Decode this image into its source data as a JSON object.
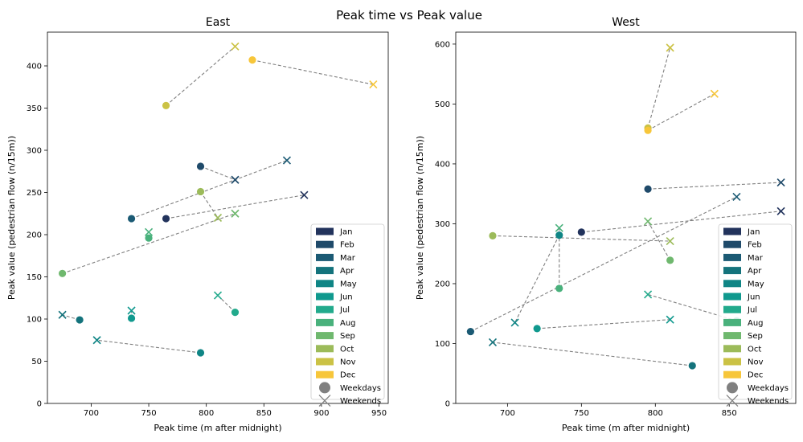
{
  "figure_title": "Peak time vs Peak value",
  "legend": {
    "months": [
      {
        "label": "Jan",
        "color": "#22335c"
      },
      {
        "label": "Feb",
        "color": "#1f4a6a"
      },
      {
        "label": "Mar",
        "color": "#1b5a74"
      },
      {
        "label": "Apr",
        "color": "#14737c"
      },
      {
        "label": "May",
        "color": "#0f8585"
      },
      {
        "label": "Jun",
        "color": "#10998e"
      },
      {
        "label": "Jul",
        "color": "#22aa8c"
      },
      {
        "label": "Aug",
        "color": "#49b17c"
      },
      {
        "label": "Sep",
        "color": "#6fb86e"
      },
      {
        "label": "Oct",
        "color": "#9cbb5a"
      },
      {
        "label": "Nov",
        "color": "#cbc245"
      },
      {
        "label": "Dec",
        "color": "#f7c63a"
      }
    ],
    "markers": [
      {
        "label": "Weekdays",
        "shape": "circle",
        "color": "#808080"
      },
      {
        "label": "Weekends",
        "shape": "x",
        "color": "#808080"
      }
    ]
  },
  "chart_data": [
    {
      "type": "scatter",
      "title": "East",
      "xlabel": "Peak time (m after midnight)",
      "ylabel": "Peak value (pedestrian flow (n/15m))",
      "xlim": [
        662,
        958
      ],
      "ylim": [
        0,
        440
      ],
      "xticks": [
        700,
        750,
        800,
        850,
        900,
        950
      ],
      "yticks": [
        0,
        50,
        100,
        150,
        200,
        250,
        300,
        350,
        400
      ],
      "legend_position": "lower-right",
      "points": [
        {
          "month": "Jan",
          "weekday": [
            765,
            219
          ],
          "weekend": [
            885,
            247
          ]
        },
        {
          "month": "Feb",
          "weekday": [
            795,
            281
          ],
          "weekend": [
            825,
            265
          ]
        },
        {
          "month": "Mar",
          "weekday": [
            735,
            219
          ],
          "weekend": [
            870,
            288
          ]
        },
        {
          "month": "Apr",
          "weekday": [
            690,
            99
          ],
          "weekend": [
            675,
            105
          ]
        },
        {
          "month": "May",
          "weekday": [
            795,
            60
          ],
          "weekend": [
            705,
            75
          ]
        },
        {
          "month": "Jun",
          "weekday": [
            735,
            101
          ],
          "weekend": [
            735,
            110
          ]
        },
        {
          "month": "Jul",
          "weekday": [
            825,
            108
          ],
          "weekend": [
            810,
            128
          ]
        },
        {
          "month": "Aug",
          "weekday": [
            750,
            196
          ],
          "weekend": [
            750,
            203
          ]
        },
        {
          "month": "Sep",
          "weekday": [
            675,
            154
          ],
          "weekend": [
            825,
            225
          ]
        },
        {
          "month": "Oct",
          "weekday": [
            795,
            251
          ],
          "weekend": [
            810,
            220
          ]
        },
        {
          "month": "Nov",
          "weekday": [
            765,
            353
          ],
          "weekend": [
            825,
            423
          ]
        },
        {
          "month": "Dec",
          "weekday": [
            840,
            407
          ],
          "weekend": [
            945,
            378
          ]
        }
      ]
    },
    {
      "type": "scatter",
      "title": "West",
      "xlabel": "Peak time (m after midnight)",
      "ylabel": "Peak value (pedestrian flow (n/15m))",
      "xlim": [
        665,
        895
      ],
      "ylim": [
        0,
        620
      ],
      "xticks": [
        700,
        750,
        800,
        850
      ],
      "yticks": [
        0,
        100,
        200,
        300,
        400,
        500,
        600
      ],
      "legend_position": "lower-right",
      "points": [
        {
          "month": "Jan",
          "weekday": [
            750,
            286
          ],
          "weekend": [
            885,
            321
          ]
        },
        {
          "month": "Feb",
          "weekday": [
            795,
            358
          ],
          "weekend": [
            885,
            369
          ]
        },
        {
          "month": "Mar",
          "weekday": [
            675,
            120
          ],
          "weekend": [
            855,
            345
          ]
        },
        {
          "month": "Apr",
          "weekday": [
            825,
            63
          ],
          "weekend": [
            690,
            102
          ]
        },
        {
          "month": "May",
          "weekday": [
            735,
            281
          ],
          "weekend": [
            705,
            135
          ]
        },
        {
          "month": "Jun",
          "weekday": [
            720,
            125
          ],
          "weekend": [
            810,
            140
          ]
        },
        {
          "month": "Jul",
          "weekday": [
            855,
            138
          ],
          "weekend": [
            795,
            182
          ]
        },
        {
          "month": "Aug",
          "weekday": [
            735,
            192
          ],
          "weekend": [
            735,
            293
          ]
        },
        {
          "month": "Sep",
          "weekday": [
            810,
            239
          ],
          "weekend": [
            795,
            304
          ]
        },
        {
          "month": "Oct",
          "weekday": [
            690,
            280
          ],
          "weekend": [
            810,
            271
          ]
        },
        {
          "month": "Nov",
          "weekday": [
            795,
            460
          ],
          "weekend": [
            810,
            594
          ]
        },
        {
          "month": "Dec",
          "weekday": [
            795,
            456
          ],
          "weekend": [
            840,
            517
          ]
        }
      ]
    }
  ]
}
